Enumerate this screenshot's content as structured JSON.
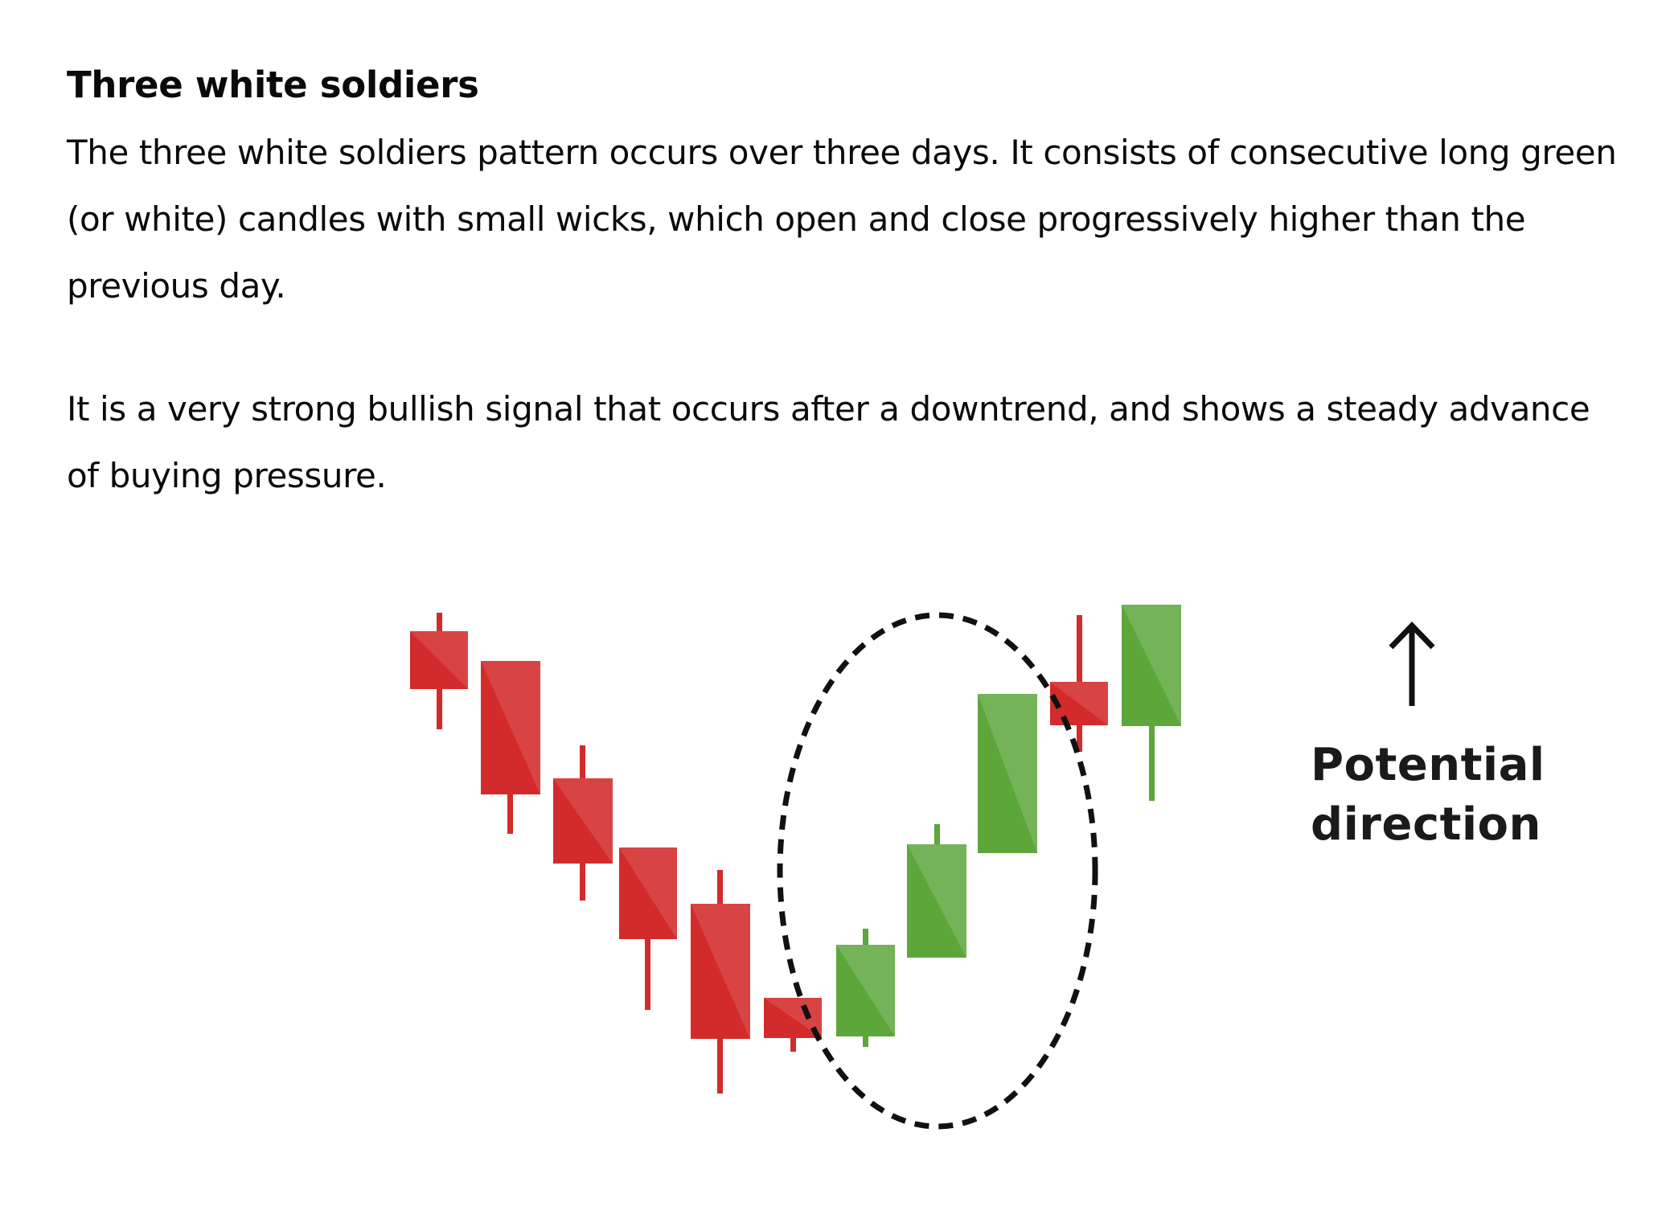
{
  "article": {
    "heading": "Three white soldiers",
    "paragraph_1": "The three white soldiers pattern occurs over three days. It consists of consecutive long green (or white) candles with small wicks, which open and close progressively higher than the previous day.",
    "paragraph_2": "It is a very strong bullish signal that occurs after a downtrend, and shows a steady advance of buying pressure."
  },
  "figure": {
    "label_line_1": "Potential",
    "label_line_2": "direction",
    "arrow_icon": "up-arrow-icon",
    "colors": {
      "bearish": "#d32b2b",
      "bullish": "#5ca63a",
      "highlight_ellipse": "#111111",
      "arrow": "#111111"
    }
  }
}
